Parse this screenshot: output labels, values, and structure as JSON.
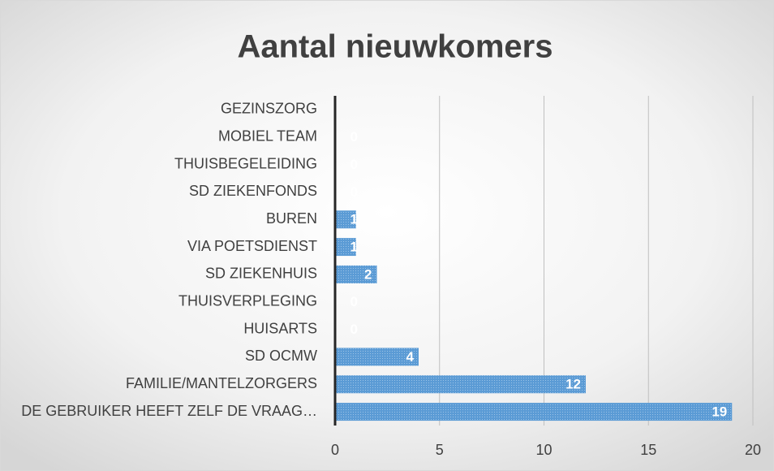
{
  "chart_data": {
    "type": "bar",
    "orientation": "horizontal",
    "title": "Aantal nieuwkomers",
    "categories": [
      "GEZINSZORG",
      "MOBIEL TEAM",
      "THUISBEGELEIDING",
      "SD ZIEKENFONDS",
      "BUREN",
      "VIA POETSDIENST",
      "SD ZIEKENHUIS",
      "THUISVERPLEGING",
      "HUISARTS",
      "SD OCMW",
      "FAMILIE/MANTELZORGERS",
      "DE GEBRUIKER HEEFT ZELF DE VRAAG…"
    ],
    "values": [
      null,
      0,
      0,
      0,
      1,
      1,
      2,
      0,
      0,
      4,
      12,
      19
    ],
    "color": "#5b9bd5",
    "xlim": [
      0,
      20
    ],
    "xticks": [
      0,
      5,
      10,
      15,
      20
    ],
    "grid": true
  }
}
